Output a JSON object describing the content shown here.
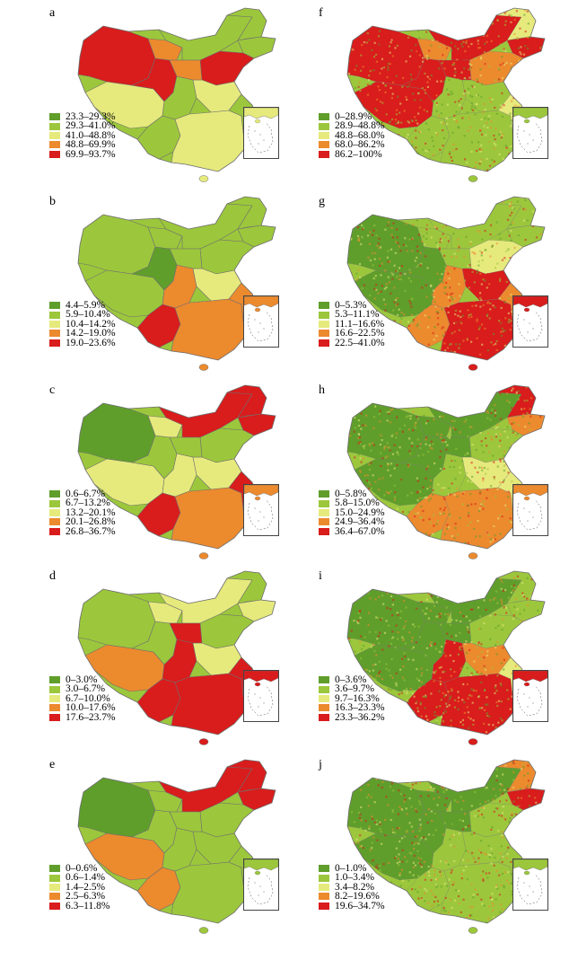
{
  "colors": {
    "c1": "#5f9e2b",
    "c2": "#9cc73c",
    "c3": "#e6ea7c",
    "c4": "#ec8a2e",
    "c5": "#d91c1c",
    "border": "#6f6f6f"
  },
  "panels": [
    {
      "letter": "a",
      "pattern": "a",
      "fine": false,
      "legend": [
        "23.3–29.3%",
        "29.3–41.0%",
        "41.0–48.8%",
        "48.8–69.9%",
        "69.9–93.7%"
      ]
    },
    {
      "letter": "f",
      "pattern": "f",
      "fine": true,
      "legend": [
        "0–28.9%",
        "28.9–48.8%",
        "48.8–68.0%",
        "68.0–86.2%",
        "86.2–100%"
      ]
    },
    {
      "letter": "b",
      "pattern": "b",
      "fine": false,
      "legend": [
        "4.4–5.9%",
        "5.9–10.4%",
        "10.4–14.2%",
        "14.2–19.0%",
        "19.0–23.6%"
      ]
    },
    {
      "letter": "g",
      "pattern": "g",
      "fine": true,
      "legend": [
        "0–5.3%",
        "5.3–11.1%",
        "11.1–16.6%",
        "16.6–22.5%",
        "22.5–41.0%"
      ]
    },
    {
      "letter": "c",
      "pattern": "c",
      "fine": false,
      "legend": [
        "0.6–6.7%",
        "6.7–13.2%",
        "13.2–20.1%",
        "20.1–26.8%",
        "26.8–36.7%"
      ]
    },
    {
      "letter": "h",
      "pattern": "h",
      "fine": true,
      "legend": [
        "0–5.8%",
        "5.8–15.0%",
        "15.0–24.9%",
        "24.9–36.4%",
        "36.4–67.0%"
      ]
    },
    {
      "letter": "d",
      "pattern": "d",
      "fine": false,
      "legend": [
        "0–3.0%",
        "3.0–6.7%",
        "6.7–10.0%",
        "10.0–17.6%",
        "17.6–23.7%"
      ]
    },
    {
      "letter": "i",
      "pattern": "i",
      "fine": true,
      "legend": [
        "0–3.6%",
        "3.6–9.7%",
        "9.7–16.3%",
        "16.3–23.3%",
        "23.3–36.2%"
      ]
    },
    {
      "letter": "e",
      "pattern": "e",
      "fine": false,
      "legend": [
        "0–0.6%",
        "0.6–1.4%",
        "1.4–2.5%",
        "2.5–6.3%",
        "6.3–11.8%"
      ]
    },
    {
      "letter": "j",
      "pattern": "j",
      "fine": true,
      "legend": [
        "0–1.0%",
        "1.0–3.4%",
        "3.4–8.2%",
        "8.2–19.6%",
        "19.6–34.7%"
      ]
    }
  ]
}
